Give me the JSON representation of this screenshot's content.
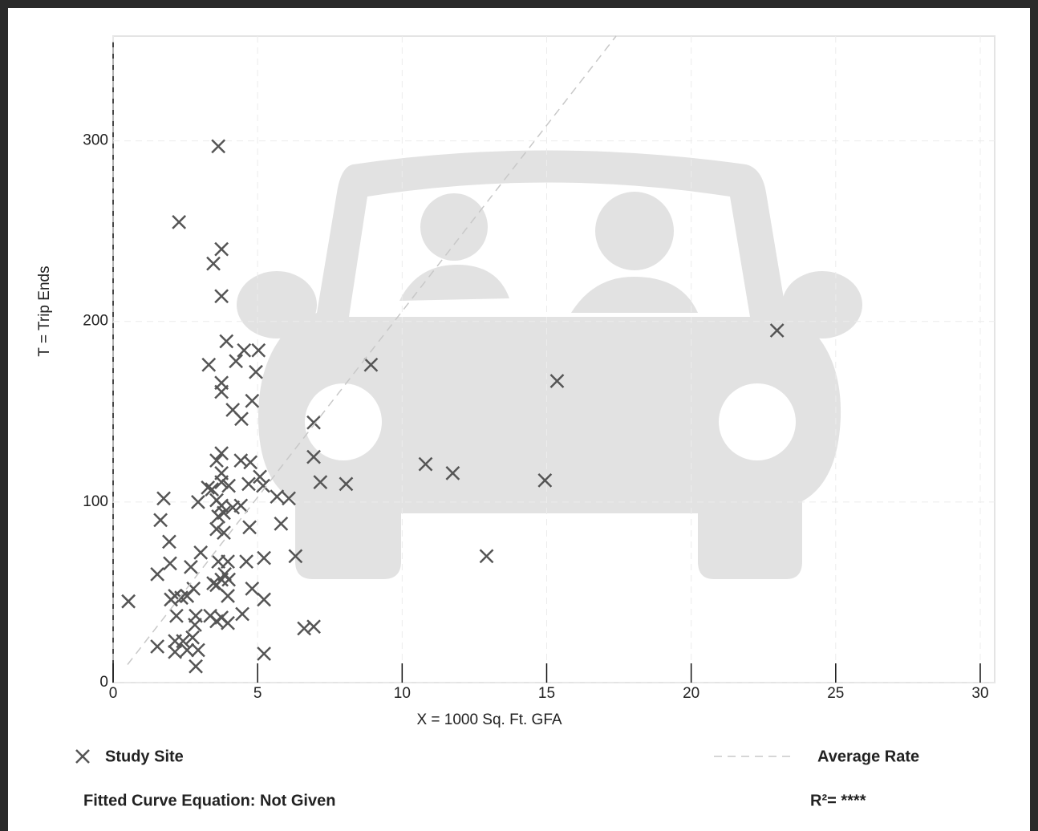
{
  "chart_data": {
    "type": "scatter",
    "x_label": "X = 1000 Sq. Ft. GFA",
    "y_label": "T = Trip Ends",
    "xlim": [
      0,
      30.5
    ],
    "ylim": [
      0,
      358
    ],
    "xticks": [
      0,
      5,
      10,
      15,
      20,
      25,
      30
    ],
    "yticks": [
      0,
      100,
      200,
      300
    ],
    "grid": true,
    "series": [
      {
        "name": "Study Site",
        "color": "#555555",
        "x": [
          0.53,
          3.64,
          2.28,
          3.75,
          3.47,
          3.75,
          3.92,
          3.31,
          4.25,
          4.53,
          5.03,
          4.94,
          3.75,
          3.75,
          4.81,
          4.14,
          4.44,
          22.97,
          8.92,
          15.36,
          6.94,
          6.94,
          7.17,
          8.06,
          10.81,
          11.75,
          14.94,
          12.92,
          5.81,
          6.31,
          6.61,
          6.94,
          5.22,
          5.22,
          5.22,
          5.19,
          5.08,
          5.67,
          6.08,
          3.75,
          3.58,
          4.42,
          4.75,
          4.69,
          3.28,
          3.42,
          3.75,
          3.75,
          4.0,
          3.58,
          3.75,
          4.14,
          4.42,
          3.83,
          3.64,
          3.58,
          3.83,
          4.72,
          1.75,
          1.64,
          1.94,
          2.94,
          3.03,
          1.97,
          2.69,
          1.53,
          3.64,
          3.97,
          4.61,
          4.0,
          3.58,
          3.75,
          3.86,
          3.47,
          2.78,
          4.81,
          3.97,
          2.0,
          2.14,
          2.36,
          2.56,
          2.19,
          2.86,
          3.36,
          3.75,
          3.58,
          3.97,
          4.47,
          2.83,
          1.53,
          2.14,
          2.14,
          2.42,
          2.56,
          2.75,
          2.94,
          2.86
        ],
        "values": [
          45,
          297,
          255,
          240,
          232,
          214,
          189,
          176,
          178,
          184,
          184,
          172,
          166,
          161,
          156,
          151,
          146,
          195,
          176,
          167,
          144,
          125,
          111,
          110,
          121,
          116,
          112,
          70,
          88,
          70,
          30,
          31,
          16,
          46,
          69,
          109,
          114,
          103,
          102,
          127,
          123,
          123,
          122,
          110,
          108,
          107,
          116,
          111,
          109,
          101,
          98,
          97,
          98,
          94,
          92,
          85,
          83,
          86,
          102,
          90,
          78,
          100,
          72,
          66,
          64,
          60,
          67,
          67,
          67,
          57,
          54,
          57,
          60,
          55,
          52,
          52,
          48,
          46,
          48,
          47,
          48,
          37,
          37,
          37,
          36,
          34,
          33,
          38,
          32,
          20,
          23,
          17,
          23,
          18,
          25,
          18,
          9
        ]
      },
      {
        "name": "Average Rate",
        "color": "#c8c8c8",
        "line": "dashed",
        "x": [
          0.5,
          17.4
        ],
        "values": [
          10,
          358
        ]
      }
    ],
    "fitted_curve": "Fitted Curve Equation: Not Given",
    "r_squared": "R²= ****"
  }
}
